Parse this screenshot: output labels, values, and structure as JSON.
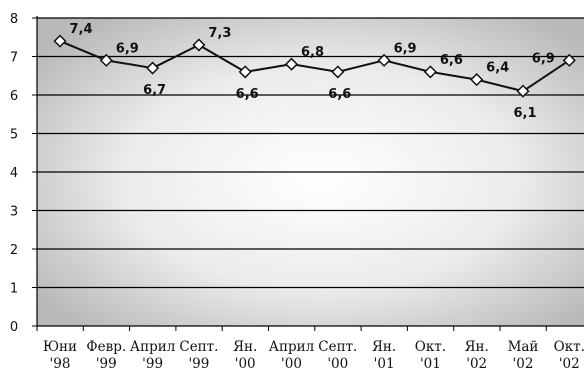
{
  "chart_data": {
    "type": "line",
    "title": "",
    "xlabel": "",
    "ylabel": "",
    "ylim": [
      0,
      8
    ],
    "yticks": [
      "0",
      "1",
      "2",
      "3",
      "4",
      "5",
      "6",
      "7",
      "8"
    ],
    "grid": true,
    "legend": "none",
    "categories": [
      [
        "Юни",
        "'98"
      ],
      [
        "Февр.",
        "'99"
      ],
      [
        "Април",
        "'99"
      ],
      [
        "Септ.",
        "'99"
      ],
      [
        "Ян.",
        "'00"
      ],
      [
        "Април",
        "'00"
      ],
      [
        "Септ.",
        "'00"
      ],
      [
        "Ян.",
        "'01"
      ],
      [
        "Окт.",
        "'01"
      ],
      [
        "Ян.",
        "'02"
      ],
      [
        "Май",
        "'02"
      ],
      [
        "Окт.",
        "'02"
      ]
    ],
    "points": [
      {
        "value": 7.4,
        "label": "7,4"
      },
      {
        "value": 6.9,
        "label": "6,9"
      },
      {
        "value": 6.7,
        "label": "6,7"
      },
      {
        "value": 7.3,
        "label": "7,3"
      },
      {
        "value": 6.6,
        "label": "6,6"
      },
      {
        "value": 6.8,
        "label": "6,8"
      },
      {
        "value": 6.6,
        "label": "6,6"
      },
      {
        "value": 6.9,
        "label": "6,9"
      },
      {
        "value": 6.6,
        "label": "6,6"
      },
      {
        "value": 6.4,
        "label": "6,4"
      },
      {
        "value": 6.1,
        "label": "6,1"
      },
      {
        "value": 6.9,
        "label": "6,9"
      }
    ],
    "colors": {
      "line": "#111111",
      "marker_fill": "#ffffff",
      "grid": "#000000"
    }
  }
}
